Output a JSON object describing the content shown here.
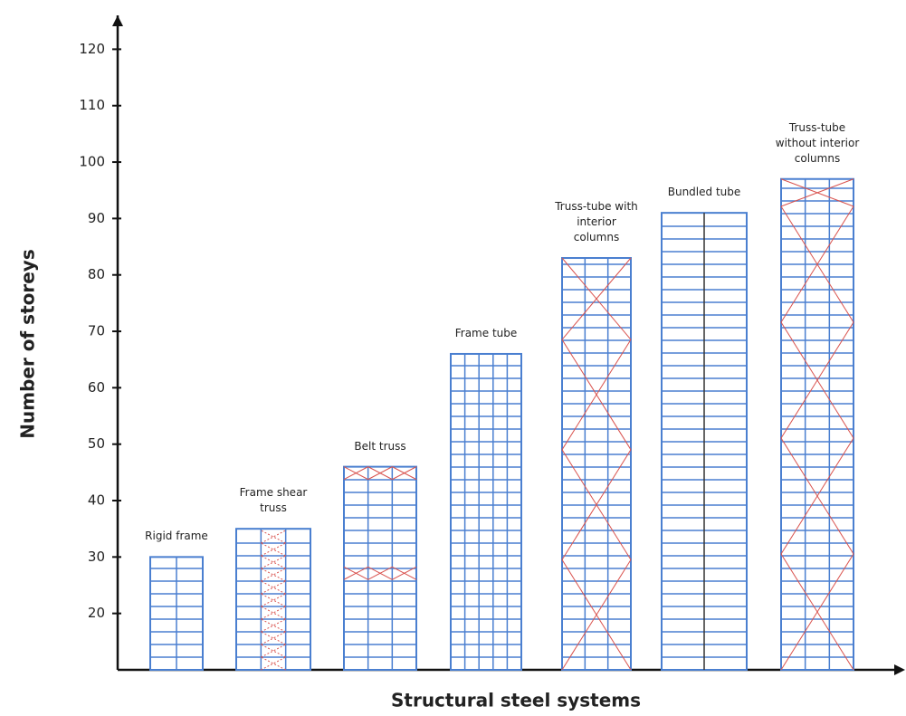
{
  "chart_data": {
    "type": "bar",
    "x_label": "Structural steel systems",
    "y_label": "Number of storeys",
    "categories": [
      "Rigid frame",
      "Frame shear truss",
      "Belt truss",
      "Frame tube",
      "Truss-tube with interior columns",
      "Bundled tube",
      "Truss-tube without interior columns"
    ],
    "values": [
      30,
      35,
      46,
      66,
      83,
      91,
      97
    ],
    "color": "#4a7fd0",
    "ylim": [
      10,
      126
    ],
    "yticks": [
      20,
      30,
      40,
      50,
      60,
      70,
      80,
      90,
      100,
      110,
      120
    ]
  }
}
